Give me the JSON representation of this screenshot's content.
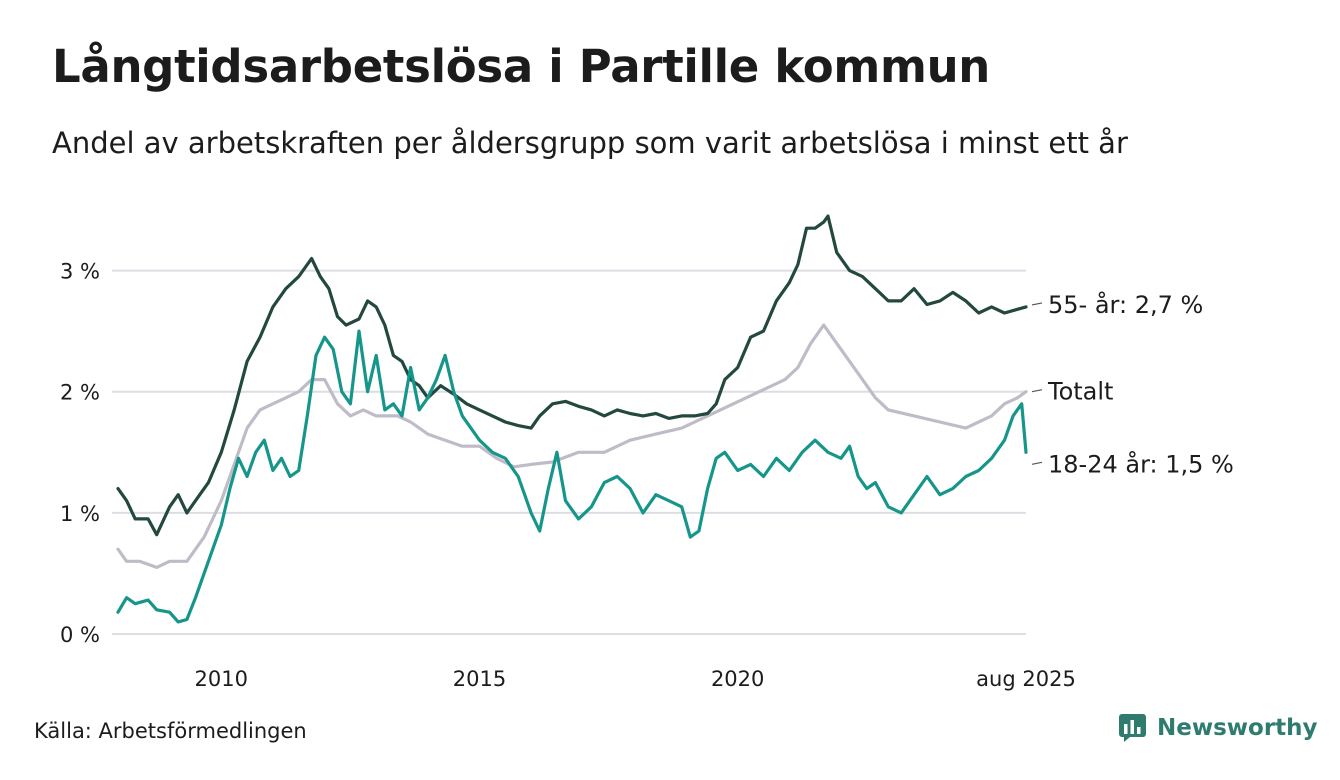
{
  "title": "Långtidsarbetslösa i Partille kommun",
  "subtitle": "Andel av arbetskraften per åldersgrupp som varit arbetslösa i minst ett år",
  "source": "Källa: Arbetsförmedlingen",
  "brand": {
    "name": "Newsworthy",
    "icon": "newsworthy-logo-icon"
  },
  "colors": {
    "series_55": "#23483f",
    "series_18_24": "#16968a",
    "series_total": "#bfbcc8",
    "grid": "#dedde4"
  },
  "chart_data": {
    "type": "line",
    "title": "Långtidsarbetslösa i Partille kommun",
    "subtitle": "Andel av arbetskraften per åldersgrupp som varit arbetslösa i minst ett år",
    "xlabel": "",
    "ylabel": "",
    "xlim": [
      "2008-01",
      "2025-08"
    ],
    "ylim": [
      0,
      3.5
    ],
    "unit": "%",
    "y_ticks": [
      0,
      1,
      2,
      3
    ],
    "y_tick_labels": [
      "0 %",
      "1 %",
      "2 %",
      "3 %"
    ],
    "x_ticks": [
      "2010-01",
      "2015-01",
      "2020-01",
      "2025-08"
    ],
    "x_tick_labels": [
      "2010",
      "2015",
      "2020",
      "aug 2025"
    ],
    "grid": true,
    "legend": "end-of-line labels",
    "series": [
      {
        "name": "55- år",
        "end_label": "55- år: 2,7 %",
        "color": "#23483f",
        "points": [
          [
            "2008-01",
            1.2
          ],
          [
            "2008-03",
            1.1
          ],
          [
            "2008-05",
            0.95
          ],
          [
            "2008-08",
            0.95
          ],
          [
            "2008-10",
            0.82
          ],
          [
            "2009-01",
            1.05
          ],
          [
            "2009-03",
            1.15
          ],
          [
            "2009-05",
            1.0
          ],
          [
            "2009-07",
            1.1
          ],
          [
            "2009-10",
            1.25
          ],
          [
            "2010-01",
            1.5
          ],
          [
            "2010-04",
            1.85
          ],
          [
            "2010-07",
            2.25
          ],
          [
            "2010-10",
            2.45
          ],
          [
            "2011-01",
            2.7
          ],
          [
            "2011-04",
            2.85
          ],
          [
            "2011-07",
            2.95
          ],
          [
            "2011-09",
            3.05
          ],
          [
            "2011-10",
            3.1
          ],
          [
            "2011-12",
            2.95
          ],
          [
            "2012-02",
            2.85
          ],
          [
            "2012-04",
            2.62
          ],
          [
            "2012-06",
            2.55
          ],
          [
            "2012-09",
            2.6
          ],
          [
            "2012-11",
            2.75
          ],
          [
            "2013-01",
            2.7
          ],
          [
            "2013-03",
            2.55
          ],
          [
            "2013-05",
            2.3
          ],
          [
            "2013-07",
            2.25
          ],
          [
            "2013-09",
            2.1
          ],
          [
            "2013-11",
            2.05
          ],
          [
            "2014-01",
            1.95
          ],
          [
            "2014-04",
            2.05
          ],
          [
            "2014-07",
            1.98
          ],
          [
            "2014-10",
            1.9
          ],
          [
            "2015-01",
            1.85
          ],
          [
            "2015-04",
            1.8
          ],
          [
            "2015-07",
            1.75
          ],
          [
            "2015-10",
            1.72
          ],
          [
            "2016-01",
            1.7
          ],
          [
            "2016-03",
            1.8
          ],
          [
            "2016-06",
            1.9
          ],
          [
            "2016-09",
            1.92
          ],
          [
            "2016-12",
            1.88
          ],
          [
            "2017-03",
            1.85
          ],
          [
            "2017-06",
            1.8
          ],
          [
            "2017-09",
            1.85
          ],
          [
            "2017-12",
            1.82
          ],
          [
            "2018-03",
            1.8
          ],
          [
            "2018-06",
            1.82
          ],
          [
            "2018-09",
            1.78
          ],
          [
            "2018-12",
            1.8
          ],
          [
            "2019-03",
            1.8
          ],
          [
            "2019-06",
            1.82
          ],
          [
            "2019-08",
            1.9
          ],
          [
            "2019-10",
            2.1
          ],
          [
            "2020-01",
            2.2
          ],
          [
            "2020-04",
            2.45
          ],
          [
            "2020-07",
            2.5
          ],
          [
            "2020-10",
            2.75
          ],
          [
            "2021-01",
            2.9
          ],
          [
            "2021-03",
            3.05
          ],
          [
            "2021-05",
            3.35
          ],
          [
            "2021-07",
            3.35
          ],
          [
            "2021-09",
            3.4
          ],
          [
            "2021-10",
            3.45
          ],
          [
            "2021-12",
            3.15
          ],
          [
            "2022-03",
            3.0
          ],
          [
            "2022-06",
            2.95
          ],
          [
            "2022-09",
            2.85
          ],
          [
            "2022-12",
            2.75
          ],
          [
            "2023-03",
            2.75
          ],
          [
            "2023-06",
            2.85
          ],
          [
            "2023-09",
            2.72
          ],
          [
            "2023-12",
            2.75
          ],
          [
            "2024-03",
            2.82
          ],
          [
            "2024-06",
            2.75
          ],
          [
            "2024-09",
            2.65
          ],
          [
            "2024-12",
            2.7
          ],
          [
            "2025-03",
            2.65
          ],
          [
            "2025-06",
            2.68
          ],
          [
            "2025-08",
            2.7
          ]
        ]
      },
      {
        "name": "Totalt",
        "end_label": "Totalt",
        "color": "#bfbcc8",
        "points": [
          [
            "2008-01",
            0.7
          ],
          [
            "2008-03",
            0.6
          ],
          [
            "2008-06",
            0.6
          ],
          [
            "2008-10",
            0.55
          ],
          [
            "2009-01",
            0.6
          ],
          [
            "2009-05",
            0.6
          ],
          [
            "2009-09",
            0.8
          ],
          [
            "2010-01",
            1.1
          ],
          [
            "2010-04",
            1.4
          ],
          [
            "2010-07",
            1.7
          ],
          [
            "2010-10",
            1.85
          ],
          [
            "2011-01",
            1.9
          ],
          [
            "2011-04",
            1.95
          ],
          [
            "2011-07",
            2.0
          ],
          [
            "2011-10",
            2.1
          ],
          [
            "2012-01",
            2.1
          ],
          [
            "2012-04",
            1.9
          ],
          [
            "2012-07",
            1.8
          ],
          [
            "2012-10",
            1.85
          ],
          [
            "2013-01",
            1.8
          ],
          [
            "2013-06",
            1.8
          ],
          [
            "2013-09",
            1.75
          ],
          [
            "2014-01",
            1.65
          ],
          [
            "2014-05",
            1.6
          ],
          [
            "2014-09",
            1.55
          ],
          [
            "2015-01",
            1.55
          ],
          [
            "2015-05",
            1.45
          ],
          [
            "2015-09",
            1.38
          ],
          [
            "2016-01",
            1.4
          ],
          [
            "2016-06",
            1.42
          ],
          [
            "2016-12",
            1.5
          ],
          [
            "2017-06",
            1.5
          ],
          [
            "2017-12",
            1.6
          ],
          [
            "2018-06",
            1.65
          ],
          [
            "2018-12",
            1.7
          ],
          [
            "2019-06",
            1.8
          ],
          [
            "2019-12",
            1.9
          ],
          [
            "2020-06",
            2.0
          ],
          [
            "2020-12",
            2.1
          ],
          [
            "2021-03",
            2.2
          ],
          [
            "2021-06",
            2.4
          ],
          [
            "2021-09",
            2.55
          ],
          [
            "2021-12",
            2.4
          ],
          [
            "2022-03",
            2.25
          ],
          [
            "2022-06",
            2.1
          ],
          [
            "2022-09",
            1.95
          ],
          [
            "2022-12",
            1.85
          ],
          [
            "2023-06",
            1.8
          ],
          [
            "2023-12",
            1.75
          ],
          [
            "2024-06",
            1.7
          ],
          [
            "2024-12",
            1.8
          ],
          [
            "2025-03",
            1.9
          ],
          [
            "2025-06",
            1.95
          ],
          [
            "2025-08",
            2.0
          ]
        ]
      },
      {
        "name": "18-24 år",
        "end_label": "18-24 år: 1,5 %",
        "color": "#16968a",
        "points": [
          [
            "2008-01",
            0.18
          ],
          [
            "2008-03",
            0.3
          ],
          [
            "2008-05",
            0.25
          ],
          [
            "2008-08",
            0.28
          ],
          [
            "2008-10",
            0.2
          ],
          [
            "2009-01",
            0.18
          ],
          [
            "2009-03",
            0.1
          ],
          [
            "2009-05",
            0.12
          ],
          [
            "2009-07",
            0.3
          ],
          [
            "2009-10",
            0.6
          ],
          [
            "2010-01",
            0.9
          ],
          [
            "2010-03",
            1.2
          ],
          [
            "2010-05",
            1.45
          ],
          [
            "2010-07",
            1.3
          ],
          [
            "2010-09",
            1.5
          ],
          [
            "2010-11",
            1.6
          ],
          [
            "2011-01",
            1.35
          ],
          [
            "2011-03",
            1.45
          ],
          [
            "2011-05",
            1.3
          ],
          [
            "2011-07",
            1.35
          ],
          [
            "2011-09",
            1.8
          ],
          [
            "2011-11",
            2.3
          ],
          [
            "2012-01",
            2.45
          ],
          [
            "2012-03",
            2.35
          ],
          [
            "2012-05",
            2.0
          ],
          [
            "2012-07",
            1.9
          ],
          [
            "2012-09",
            2.5
          ],
          [
            "2012-11",
            2.0
          ],
          [
            "2013-01",
            2.3
          ],
          [
            "2013-03",
            1.85
          ],
          [
            "2013-05",
            1.9
          ],
          [
            "2013-07",
            1.8
          ],
          [
            "2013-09",
            2.2
          ],
          [
            "2013-11",
            1.85
          ],
          [
            "2014-01",
            1.95
          ],
          [
            "2014-03",
            2.1
          ],
          [
            "2014-05",
            2.3
          ],
          [
            "2014-07",
            2.0
          ],
          [
            "2014-09",
            1.8
          ],
          [
            "2015-01",
            1.6
          ],
          [
            "2015-04",
            1.5
          ],
          [
            "2015-07",
            1.45
          ],
          [
            "2015-10",
            1.3
          ],
          [
            "2016-01",
            1.0
          ],
          [
            "2016-03",
            0.85
          ],
          [
            "2016-05",
            1.2
          ],
          [
            "2016-07",
            1.5
          ],
          [
            "2016-09",
            1.1
          ],
          [
            "2016-12",
            0.95
          ],
          [
            "2017-03",
            1.05
          ],
          [
            "2017-06",
            1.25
          ],
          [
            "2017-09",
            1.3
          ],
          [
            "2017-12",
            1.2
          ],
          [
            "2018-03",
            1.0
          ],
          [
            "2018-06",
            1.15
          ],
          [
            "2018-09",
            1.1
          ],
          [
            "2018-12",
            1.05
          ],
          [
            "2019-02",
            0.8
          ],
          [
            "2019-04",
            0.85
          ],
          [
            "2019-06",
            1.2
          ],
          [
            "2019-08",
            1.45
          ],
          [
            "2019-10",
            1.5
          ],
          [
            "2020-01",
            1.35
          ],
          [
            "2020-04",
            1.4
          ],
          [
            "2020-07",
            1.3
          ],
          [
            "2020-10",
            1.45
          ],
          [
            "2021-01",
            1.35
          ],
          [
            "2021-04",
            1.5
          ],
          [
            "2021-07",
            1.6
          ],
          [
            "2021-10",
            1.5
          ],
          [
            "2022-01",
            1.45
          ],
          [
            "2022-03",
            1.55
          ],
          [
            "2022-05",
            1.3
          ],
          [
            "2022-07",
            1.2
          ],
          [
            "2022-09",
            1.25
          ],
          [
            "2022-12",
            1.05
          ],
          [
            "2023-03",
            1.0
          ],
          [
            "2023-06",
            1.15
          ],
          [
            "2023-09",
            1.3
          ],
          [
            "2023-12",
            1.15
          ],
          [
            "2024-03",
            1.2
          ],
          [
            "2024-06",
            1.3
          ],
          [
            "2024-09",
            1.35
          ],
          [
            "2024-12",
            1.45
          ],
          [
            "2025-03",
            1.6
          ],
          [
            "2025-05",
            1.8
          ],
          [
            "2025-07",
            1.9
          ],
          [
            "2025-08",
            1.5
          ]
        ]
      }
    ]
  }
}
